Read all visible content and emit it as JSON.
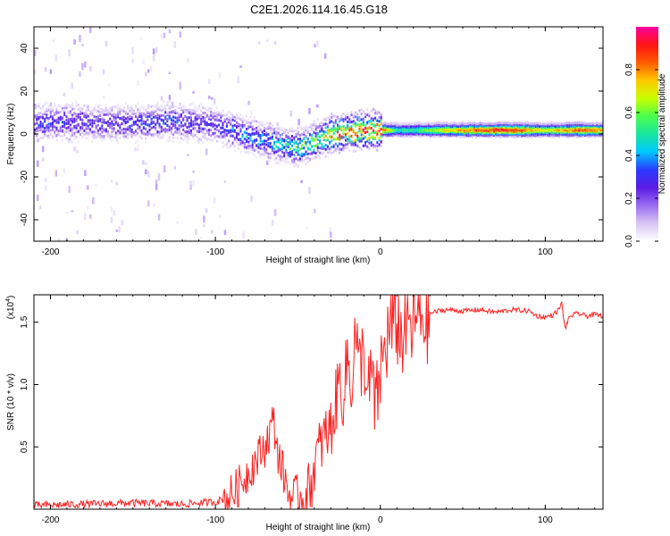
{
  "title": "C2E1.2026.114.16.45.G18",
  "chart_data": [
    {
      "type": "heatmap",
      "name": "spectrogram",
      "xlabel": "Height of straight line (km)",
      "ylabel": "Frequency (Hz)",
      "xlim": [
        -210,
        135
      ],
      "ylim": [
        -50,
        50
      ],
      "x_ticks": [
        -200,
        -100,
        0,
        100
      ],
      "y_ticks": [
        -40,
        -20,
        0,
        20,
        40
      ],
      "colorbar": {
        "label": "Normalized spectral amplitude",
        "range": [
          0,
          1
        ],
        "ticks": [
          0.0,
          0.2,
          0.4,
          0.6,
          0.8
        ],
        "colors": [
          "#ffffff",
          "#d9c6f5",
          "#9b6cf2",
          "#5a1be6",
          "#2a3cff",
          "#00c8ff",
          "#19e6a0",
          "#4cff4c",
          "#c8ff00",
          "#ffc800",
          "#ff5a00",
          "#ff1414",
          "#ff00a0"
        ]
      },
      "ridge": {
        "x": [
          -210,
          -190,
          -170,
          -150,
          -130,
          -110,
          -100,
          -90,
          -80,
          -70,
          -60,
          -50,
          -40,
          -30,
          -20,
          -10,
          0,
          10,
          20,
          40,
          60,
          80,
          100,
          120,
          135
        ],
        "freq": [
          5,
          6,
          5,
          5,
          6,
          5,
          4,
          2,
          -1,
          -3,
          -5,
          -6,
          -3,
          0,
          1,
          2,
          2,
          2,
          2,
          2,
          2,
          2,
          2,
          2,
          2
        ],
        "amplitude": [
          0.3,
          0.3,
          0.28,
          0.3,
          0.33,
          0.32,
          0.3,
          0.35,
          0.4,
          0.42,
          0.45,
          0.55,
          0.6,
          0.75,
          0.85,
          0.9,
          0.9,
          0.5,
          0.55,
          0.75,
          0.9,
          0.95,
          0.7,
          0.9,
          0.8
        ]
      }
    },
    {
      "type": "line",
      "name": "snr",
      "xlabel": "Height of straight line (km)",
      "ylabel": "SNR (10 * v/v)",
      "y_multiplier": "(x10",
      "y_multiplier_exp": "4",
      "xlim": [
        -210,
        135
      ],
      "ylim": [
        0,
        1.72
      ],
      "x_ticks": [
        -200,
        -100,
        0,
        100
      ],
      "y_ticks": [
        0.5,
        1.0,
        1.5
      ],
      "y_tick_labels": [
        "0.5",
        "1.0",
        "1.5"
      ],
      "color": "#ff2020",
      "series": {
        "x": [
          -210,
          -180,
          -150,
          -120,
          -100,
          -95,
          -90,
          -85,
          -80,
          -75,
          -70,
          -67,
          -65,
          -62,
          -58,
          -55,
          -50,
          -45,
          -42,
          -40,
          -38,
          -35,
          -30,
          -27,
          -25,
          -22,
          -20,
          -18,
          -15,
          -13,
          -10,
          -8,
          -5,
          -3,
          0,
          3,
          5,
          8,
          10,
          12,
          15,
          18,
          20,
          25,
          30,
          35,
          40,
          50,
          60,
          70,
          80,
          90,
          95,
          100,
          105,
          108,
          110,
          112,
          115,
          120,
          125,
          130,
          135
        ],
        "y": [
          0.03,
          0.04,
          0.05,
          0.04,
          0.06,
          0.08,
          0.12,
          0.2,
          0.3,
          0.4,
          0.5,
          0.62,
          0.72,
          0.45,
          0.25,
          0.1,
          0.08,
          0.12,
          0.2,
          0.35,
          0.45,
          0.55,
          0.65,
          0.85,
          1.05,
          0.9,
          1.25,
          0.95,
          1.45,
          1.1,
          1.3,
          0.85,
          1.1,
          0.75,
          1.1,
          1.3,
          1.4,
          1.5,
          1.55,
          1.35,
          1.5,
          1.45,
          1.52,
          1.55,
          1.57,
          1.59,
          1.6,
          1.59,
          1.6,
          1.58,
          1.6,
          1.59,
          1.55,
          1.54,
          1.56,
          1.6,
          1.65,
          1.45,
          1.55,
          1.57,
          1.55,
          1.56,
          1.55
        ]
      }
    }
  ]
}
